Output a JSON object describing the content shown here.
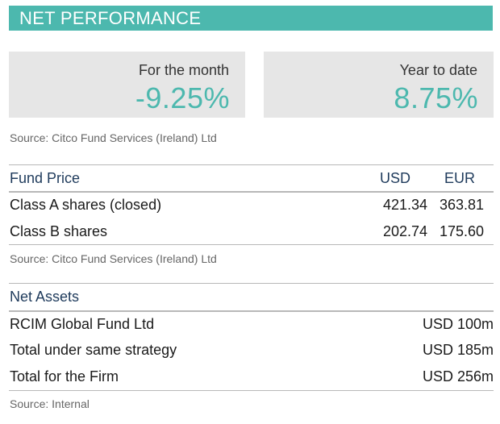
{
  "header": {
    "title": "NET PERFORMANCE"
  },
  "performance": {
    "month": {
      "label": "For the month",
      "value": "-9.25%"
    },
    "ytd": {
      "label": "Year to date",
      "value": "8.75%"
    }
  },
  "sources": {
    "performance": "Source: Citco Fund Services (Ireland) Ltd",
    "fund_price": "Source: Citco Fund Services (Ireland) Ltd",
    "net_assets": "Source: Internal"
  },
  "fund_price": {
    "title": "Fund Price",
    "col_usd": "USD",
    "col_eur": "EUR",
    "rows": [
      {
        "name": "Class A shares (closed)",
        "usd": "421.34",
        "eur": "363.81"
      },
      {
        "name": "Class B shares",
        "usd": "202.74",
        "eur": "175.60"
      }
    ]
  },
  "net_assets": {
    "title": "Net Assets",
    "rows": [
      {
        "name": "RCIM Global Fund Ltd",
        "amount": "USD 100m"
      },
      {
        "name": "Total under same strategy",
        "amount": "USD 185m"
      },
      {
        "name": "Total for the Firm",
        "amount": "USD 256m"
      }
    ]
  },
  "colors": {
    "accent": "#4cb8ae",
    "heading": "#1f3b5c",
    "box": "#e6e6e6"
  }
}
